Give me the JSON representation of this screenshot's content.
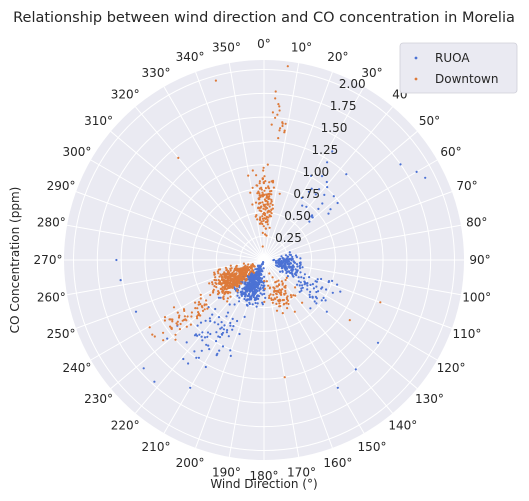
{
  "chart_data": {
    "type": "scatter",
    "projection": "polar",
    "title": "Relationship between wind direction and CO concentration in Morelia",
    "xlabel": "Wind Direction (°)",
    "ylabel": "CO Concentration (ppm)",
    "theta_direction": "clockwise",
    "theta_zero": "N",
    "theta_ticks": [
      "0°",
      "10°",
      "20°",
      "30°",
      "40°",
      "50°",
      "60°",
      "70°",
      "80°",
      "90°",
      "100°",
      "110°",
      "120°",
      "130°",
      "140°",
      "150°",
      "160°",
      "170°",
      "180°",
      "190°",
      "200°",
      "210°",
      "220°",
      "230°",
      "240°",
      "250°",
      "260°",
      "270°",
      "280°",
      "290°",
      "300°",
      "310°",
      "320°",
      "330°",
      "340°",
      "350°"
    ],
    "r_ticks": [
      "0.25",
      "0.50",
      "0.75",
      "1.00",
      "1.25",
      "1.50",
      "1.75",
      "2.00"
    ],
    "r_tick_values": [
      0.25,
      0.5,
      0.75,
      1.0,
      1.25,
      1.5,
      1.75,
      2.0
    ],
    "rlim": [
      0,
      2.1
    ],
    "grid": true,
    "legend_position": "upper right",
    "colors": {
      "RUOA": "#4c72d4",
      "Downtown": "#dd7a3a",
      "background": "#eaeaf2",
      "grid": "#ffffff"
    },
    "series": [
      {
        "name": "RUOA",
        "marker": "dot",
        "color": "#4c72d4",
        "clusters": [
          {
            "theta": [
              170,
              240
            ],
            "r": [
              0.0,
              0.55
            ],
            "n": 430
          },
          {
            "theta": [
              70,
              130
            ],
            "r": [
              0.05,
              0.45
            ],
            "n": 170
          },
          {
            "theta": [
              100,
              140
            ],
            "r": [
              0.2,
              1.0
            ],
            "n": 60
          },
          {
            "theta": [
              190,
              240
            ],
            "r": [
              0.4,
              1.5
            ],
            "n": 70
          },
          {
            "theta": [
              20,
              60
            ],
            "r": [
              0.3,
              1.7
            ],
            "n": 25
          }
        ],
        "points": [
          {
            "theta": 55,
            "r": 1.75
          },
          {
            "theta": 60,
            "r": 1.85
          },
          {
            "theta": 63,
            "r": 1.9
          },
          {
            "theta": 270,
            "r": 1.55
          },
          {
            "theta": 262,
            "r": 1.52
          },
          {
            "theta": 248,
            "r": 1.45
          },
          {
            "theta": 228,
            "r": 1.7
          },
          {
            "theta": 222,
            "r": 1.72
          },
          {
            "theta": 210,
            "r": 1.55
          },
          {
            "theta": 150,
            "r": 1.55
          },
          {
            "theta": 140,
            "r": 1.5
          },
          {
            "theta": 126,
            "r": 1.48
          }
        ]
      },
      {
        "name": "Downtown",
        "marker": "dot",
        "color": "#dd7a3a",
        "clusters": [
          {
            "theta": [
              215,
              265
            ],
            "r": [
              0.05,
              0.7
            ],
            "n": 400
          },
          {
            "theta": [
              345,
              15
            ],
            "r": [
              0.1,
              1.1
            ],
            "n": 150
          },
          {
            "theta": [
              125,
              185
            ],
            "r": [
              0.1,
              0.7
            ],
            "n": 90
          },
          {
            "theta": [
              225,
              245
            ],
            "r": [
              0.5,
              1.5
            ],
            "n": 60
          },
          {
            "theta": [
              0,
              12
            ],
            "r": [
              1.0,
              2.0
            ],
            "n": 18
          }
        ],
        "points": [
          {
            "theta": 7,
            "r": 2.05
          },
          {
            "theta": 345,
            "r": 1.95
          },
          {
            "theta": 320,
            "r": 1.4
          },
          {
            "theta": 110,
            "r": 1.3
          },
          {
            "theta": 125,
            "r": 1.1
          },
          {
            "theta": 235,
            "r": 1.4
          },
          {
            "theta": 228,
            "r": 1.25
          },
          {
            "theta": 240,
            "r": 1.2
          },
          {
            "theta": 170,
            "r": 1.25
          }
        ]
      }
    ]
  },
  "legend": {
    "items": [
      {
        "label": "RUOA",
        "color": "#4c72d4"
      },
      {
        "label": "Downtown",
        "color": "#dd7a3a"
      }
    ]
  }
}
